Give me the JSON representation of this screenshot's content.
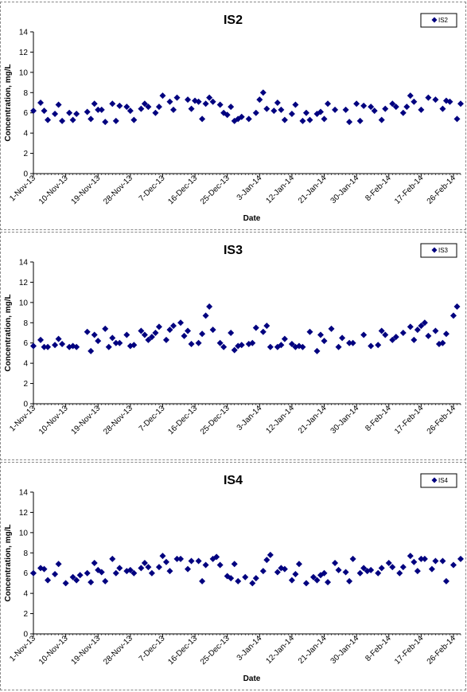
{
  "chart_data": [
    {
      "type": "scatter",
      "title": "IS2",
      "xlabel": "Date",
      "ylabel": "Concentration, mg/L",
      "ylim": [
        0,
        14
      ],
      "yticks": [
        "0",
        "2",
        "4",
        "6",
        "8",
        "10",
        "12",
        "14"
      ],
      "xticks": [
        "1-Nov-13",
        "10-Nov-13",
        "19-Nov-13",
        "28-Nov-13",
        "7-Dec-13",
        "16-Dec-13",
        "25-Dec-13",
        "3-Jan-14",
        "12-Jan-14",
        "21-Jan-14",
        "30-Jan-14",
        "8-Feb-14",
        "17-Feb-14",
        "26-Feb-14"
      ],
      "grid": false,
      "legend_position": "top-right",
      "series": [
        {
          "name": "IS2",
          "color": "#00007f",
          "marker": "diamond",
          "x": [
            "2013-11-01",
            "2013-11-03",
            "2013-11-04",
            "2013-11-05",
            "2013-11-07",
            "2013-11-08",
            "2013-11-09",
            "2013-11-11",
            "2013-11-12",
            "2013-11-13",
            "2013-11-16",
            "2013-11-17",
            "2013-11-18",
            "2013-11-19",
            "2013-11-20",
            "2013-11-21",
            "2013-11-23",
            "2013-11-24",
            "2013-11-25",
            "2013-11-27",
            "2013-11-28",
            "2013-11-29",
            "2013-12-01",
            "2013-12-02",
            "2013-12-03",
            "2013-12-05",
            "2013-12-06",
            "2013-12-07",
            "2013-12-09",
            "2013-12-10",
            "2013-12-11",
            "2013-12-14",
            "2013-12-15",
            "2013-12-16",
            "2013-12-17",
            "2013-12-18",
            "2013-12-19",
            "2013-12-20",
            "2013-12-21",
            "2013-12-23",
            "2013-12-24",
            "2013-12-25",
            "2013-12-26",
            "2013-12-27",
            "2013-12-28",
            "2013-12-29",
            "2013-12-31",
            "2014-01-02",
            "2014-01-03",
            "2014-01-04",
            "2014-01-05",
            "2014-01-07",
            "2014-01-08",
            "2014-01-09",
            "2014-01-10",
            "2014-01-12",
            "2014-01-13",
            "2014-01-15",
            "2014-01-16",
            "2014-01-17",
            "2014-01-19",
            "2014-01-20",
            "2014-01-21",
            "2014-01-22",
            "2014-01-24",
            "2014-01-27",
            "2014-01-28",
            "2014-01-30",
            "2014-01-31",
            "2014-02-01",
            "2014-02-03",
            "2014-02-04",
            "2014-02-06",
            "2014-02-07",
            "2014-02-09",
            "2014-02-10",
            "2014-02-12",
            "2014-02-13",
            "2014-02-14",
            "2014-02-15",
            "2014-02-17",
            "2014-02-19",
            "2014-02-21",
            "2014-02-23",
            "2014-02-24",
            "2014-02-25",
            "2014-02-27",
            "2014-02-28"
          ],
          "y": [
            6.2,
            7.0,
            6.2,
            5.3,
            5.9,
            6.8,
            5.2,
            6.0,
            5.3,
            5.9,
            6.1,
            5.4,
            6.9,
            6.3,
            6.3,
            5.1,
            6.9,
            5.2,
            6.7,
            6.6,
            6.2,
            5.3,
            6.4,
            6.9,
            6.6,
            6.0,
            6.6,
            7.7,
            7.1,
            6.3,
            7.5,
            7.3,
            6.4,
            7.2,
            7.1,
            5.4,
            6.9,
            7.5,
            7.1,
            6.8,
            6.0,
            5.8,
            6.6,
            5.2,
            5.4,
            5.6,
            5.4,
            6.0,
            7.3,
            8.0,
            6.4,
            6.2,
            7.0,
            6.3,
            5.3,
            5.9,
            6.8,
            5.2,
            6.0,
            5.3,
            5.9,
            6.1,
            5.4,
            6.9,
            6.3,
            6.3,
            5.1,
            6.9,
            5.2,
            6.7,
            6.6,
            6.2,
            5.3,
            6.4,
            6.9,
            6.6,
            6.0,
            6.6,
            7.7,
            7.1,
            6.3,
            7.5,
            7.3,
            6.4,
            7.2,
            7.1,
            5.4,
            6.9
          ]
        }
      ]
    },
    {
      "type": "scatter",
      "title": "IS3",
      "xlabel": "",
      "ylabel": "Concentration, mg/L",
      "ylim": [
        0,
        14
      ],
      "yticks": [
        "0",
        "2",
        "4",
        "6",
        "8",
        "10",
        "12",
        "14"
      ],
      "xticks": [
        "1-Nov-13",
        "10-Nov-13",
        "19-Nov-13",
        "28-Nov-13",
        "7-Dec-13",
        "16-Dec-13",
        "25-Dec-13",
        "3-Jan-14",
        "12-Jan-14",
        "21-Jan-14",
        "30-Jan-14",
        "8-Feb-14",
        "17-Feb-14",
        "26-Feb-14"
      ],
      "grid": false,
      "legend_position": "top-right",
      "series": [
        {
          "name": "IS3",
          "color": "#00007f",
          "marker": "diamond",
          "x": [
            "2013-11-01",
            "2013-11-03",
            "2013-11-04",
            "2013-11-05",
            "2013-11-07",
            "2013-11-08",
            "2013-11-09",
            "2013-11-11",
            "2013-11-12",
            "2013-11-13",
            "2013-11-16",
            "2013-11-17",
            "2013-11-18",
            "2013-11-19",
            "2013-11-21",
            "2013-11-22",
            "2013-11-23",
            "2013-11-24",
            "2013-11-25",
            "2013-11-27",
            "2013-11-28",
            "2013-11-29",
            "2013-12-01",
            "2013-12-02",
            "2013-12-03",
            "2013-12-04",
            "2013-12-05",
            "2013-12-06",
            "2013-12-08",
            "2013-12-09",
            "2013-12-10",
            "2013-12-12",
            "2013-12-13",
            "2013-12-14",
            "2013-12-15",
            "2013-12-17",
            "2013-12-18",
            "2013-12-19",
            "2013-12-20",
            "2013-12-21",
            "2013-12-23",
            "2013-12-24",
            "2013-12-26",
            "2013-12-27",
            "2013-12-28",
            "2013-12-29",
            "2013-12-31",
            "2014-01-01",
            "2014-01-02",
            "2014-01-04",
            "2014-01-05",
            "2014-01-06",
            "2014-01-08",
            "2014-01-09",
            "2014-01-10",
            "2014-01-12",
            "2014-01-13",
            "2014-01-14",
            "2014-01-15",
            "2014-01-17",
            "2014-01-19",
            "2014-01-20",
            "2014-01-21",
            "2014-01-23",
            "2014-01-25",
            "2014-01-26",
            "2014-01-28",
            "2014-01-29",
            "2014-02-01",
            "2014-02-03",
            "2014-02-05",
            "2014-02-06",
            "2014-02-07",
            "2014-02-09",
            "2014-02-10",
            "2014-02-12",
            "2014-02-14",
            "2014-02-15",
            "2014-02-16",
            "2014-02-17",
            "2014-02-18",
            "2014-02-19",
            "2014-02-21",
            "2014-02-22",
            "2014-02-23",
            "2014-02-24",
            "2014-02-26",
            "2014-02-27"
          ],
          "y": [
            5.7,
            6.3,
            5.6,
            5.6,
            5.8,
            6.4,
            5.9,
            5.6,
            5.7,
            5.6,
            7.1,
            5.2,
            6.8,
            6.2,
            7.4,
            5.6,
            6.5,
            6.0,
            6.0,
            6.8,
            5.7,
            5.8,
            7.2,
            6.8,
            6.3,
            6.6,
            7.0,
            7.6,
            6.3,
            7.3,
            7.7,
            8.0,
            6.7,
            7.2,
            5.9,
            6.0,
            6.9,
            8.7,
            9.6,
            7.3,
            6.0,
            5.6,
            7.0,
            5.3,
            5.7,
            5.8,
            5.9,
            6.0,
            7.5,
            7.1,
            7.7,
            5.6,
            5.6,
            5.8,
            6.4,
            5.9,
            5.6,
            5.7,
            5.6,
            7.1,
            5.2,
            6.8,
            6.2,
            7.4,
            5.6,
            6.5,
            6.0,
            6.0,
            6.8,
            5.7,
            5.8,
            7.2,
            6.8,
            6.3,
            6.6,
            7.0,
            7.6,
            6.3,
            7.3,
            7.7,
            8.0,
            6.7,
            7.2,
            5.9,
            6.0,
            6.9,
            8.7,
            9.6
          ]
        }
      ]
    },
    {
      "type": "scatter",
      "title": "IS4",
      "xlabel": "Date",
      "ylabel": "Concentration, mg/L",
      "ylim": [
        0,
        14
      ],
      "yticks": [
        "0",
        "2",
        "4",
        "6",
        "8",
        "10",
        "12",
        "14"
      ],
      "xticks": [
        "1-Nov-13",
        "10-Nov-13",
        "19-Nov-13",
        "28-Nov-13",
        "7-Dec-13",
        "16-Dec-13",
        "25-Dec-13",
        "3-Jan-14",
        "12-Jan-14",
        "21-Jan-14",
        "30-Jan-14",
        "8-Feb-14",
        "17-Feb-14",
        "26-Feb-14"
      ],
      "grid": false,
      "legend_position": "top-right",
      "series": [
        {
          "name": "IS4",
          "color": "#00007f",
          "marker": "diamond",
          "x": [
            "2013-11-01",
            "2013-11-03",
            "2013-11-04",
            "2013-11-05",
            "2013-11-07",
            "2013-11-08",
            "2013-11-10",
            "2013-11-12",
            "2013-11-13",
            "2013-11-14",
            "2013-11-16",
            "2013-11-17",
            "2013-11-18",
            "2013-11-19",
            "2013-11-20",
            "2013-11-21",
            "2013-11-23",
            "2013-11-24",
            "2013-11-25",
            "2013-11-27",
            "2013-11-28",
            "2013-11-29",
            "2013-12-01",
            "2013-12-02",
            "2013-12-03",
            "2013-12-04",
            "2013-12-06",
            "2013-12-07",
            "2013-12-08",
            "2013-12-09",
            "2013-12-11",
            "2013-12-12",
            "2013-12-14",
            "2013-12-15",
            "2013-12-17",
            "2013-12-18",
            "2013-12-19",
            "2013-12-21",
            "2013-12-22",
            "2013-12-23",
            "2013-12-25",
            "2013-12-26",
            "2013-12-27",
            "2013-12-28",
            "2013-12-30",
            "2014-01-01",
            "2014-01-02",
            "2014-01-04",
            "2014-01-05",
            "2014-01-06",
            "2014-01-08",
            "2014-01-09",
            "2014-01-10",
            "2014-01-12",
            "2014-01-13",
            "2014-01-14",
            "2014-01-16",
            "2014-01-18",
            "2014-01-19",
            "2014-01-20",
            "2014-01-21",
            "2014-01-22",
            "2014-01-24",
            "2014-01-25",
            "2014-01-27",
            "2014-01-28",
            "2014-01-29",
            "2014-01-31",
            "2014-02-01",
            "2014-02-02",
            "2014-02-03",
            "2014-02-05",
            "2014-02-06",
            "2014-02-08",
            "2014-02-09",
            "2014-02-11",
            "2014-02-12",
            "2014-02-14",
            "2014-02-15",
            "2014-02-16",
            "2014-02-17",
            "2014-02-18",
            "2014-02-20",
            "2014-02-21",
            "2014-02-23",
            "2014-02-24",
            "2014-02-26",
            "2014-02-28"
          ],
          "y": [
            6.0,
            6.5,
            6.4,
            5.3,
            5.9,
            6.9,
            5.0,
            5.6,
            5.3,
            5.8,
            6.0,
            5.1,
            7.0,
            6.3,
            6.1,
            5.2,
            7.4,
            6.0,
            6.5,
            6.2,
            6.3,
            6.0,
            6.5,
            7.0,
            6.6,
            6.0,
            6.6,
            7.7,
            7.1,
            6.2,
            7.4,
            7.4,
            6.4,
            7.2,
            7.2,
            5.2,
            6.8,
            7.4,
            7.6,
            6.8,
            5.7,
            5.5,
            6.9,
            5.2,
            5.6,
            5.0,
            5.5,
            6.2,
            7.3,
            7.8,
            6.1,
            6.5,
            6.4,
            5.3,
            5.9,
            6.9,
            5.0,
            5.6,
            5.3,
            5.8,
            6.0,
            5.1,
            7.0,
            6.3,
            6.1,
            5.2,
            7.4,
            6.0,
            6.5,
            6.2,
            6.3,
            6.0,
            6.5,
            7.0,
            6.6,
            6.0,
            6.6,
            7.7,
            7.1,
            6.2,
            7.4,
            7.4,
            6.4,
            7.2,
            7.2,
            5.2,
            6.8,
            7.4
          ]
        }
      ]
    }
  ]
}
